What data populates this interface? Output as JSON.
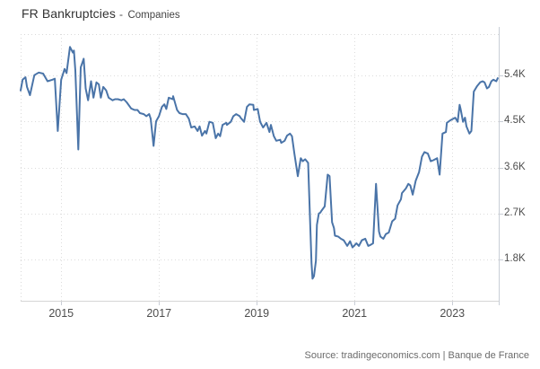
{
  "header": {
    "title": "FR Bankruptcies",
    "separator": "-",
    "subtitle": "Companies"
  },
  "footer": {
    "source": "Source: tradingeconomics.com | Banque de France"
  },
  "colors": {
    "line": "#4a74a8",
    "grid": "#dcdcdc",
    "background": "#ffffff"
  },
  "chart_data": {
    "type": "line",
    "title": "FR Bankruptcies - Companies",
    "xlabel": "",
    "ylabel": "",
    "unit": "K",
    "value_scale": "thousands of companies per month",
    "grid": "dotted",
    "legend": "none",
    "y_axis_position": "right",
    "x_range": [
      2014.17,
      2023.95
    ],
    "y_range": [
      1.0,
      6.2
    ],
    "x_ticks": [
      {
        "value": 2015,
        "label": "2015"
      },
      {
        "value": 2017,
        "label": "2017"
      },
      {
        "value": 2019,
        "label": "2019"
      },
      {
        "value": 2021,
        "label": "2021"
      },
      {
        "value": 2023,
        "label": "2023"
      }
    ],
    "y_ticks": [
      {
        "value": 5.4,
        "label": "5.4K"
      },
      {
        "value": 4.5,
        "label": "4.5K"
      },
      {
        "value": 3.6,
        "label": "3.6K"
      },
      {
        "value": 2.7,
        "label": "2.7K"
      },
      {
        "value": 1.8,
        "label": "1.8K"
      }
    ],
    "series": [
      {
        "name": "FR Bankruptcies - Companies",
        "color": "#4a74a8",
        "x": [
          2014.17,
          2014.21,
          2014.27,
          2014.3,
          2014.36,
          2014.45,
          2014.54,
          2014.63,
          2014.72,
          2014.82,
          2014.87,
          2014.93,
          2015.0,
          2015.07,
          2015.11,
          2015.18,
          2015.24,
          2015.26,
          2015.29,
          2015.35,
          2015.4,
          2015.46,
          2015.5,
          2015.55,
          2015.61,
          2015.66,
          2015.72,
          2015.77,
          2015.81,
          2015.86,
          2015.92,
          2015.97,
          2016.05,
          2016.1,
          2016.16,
          2016.23,
          2016.28,
          2016.34,
          2016.43,
          2016.5,
          2016.56,
          2016.61,
          2016.69,
          2016.74,
          2016.8,
          2016.83,
          2016.89,
          2016.94,
          2017.0,
          2017.06,
          2017.11,
          2017.15,
          2017.2,
          2017.28,
          2017.29,
          2017.37,
          2017.42,
          2017.48,
          2017.55,
          2017.61,
          2017.66,
          2017.73,
          2017.79,
          2017.83,
          2017.88,
          2017.94,
          2017.97,
          2018.03,
          2018.1,
          2018.16,
          2018.21,
          2018.25,
          2018.3,
          2018.38,
          2018.39,
          2018.47,
          2018.52,
          2018.58,
          2018.65,
          2018.67,
          2018.74,
          2018.8,
          2018.85,
          2018.93,
          2018.94,
          2019.02,
          2019.07,
          2019.13,
          2019.2,
          2019.26,
          2019.29,
          2019.35,
          2019.4,
          2019.48,
          2019.5,
          2019.57,
          2019.62,
          2019.68,
          2019.72,
          2019.77,
          2019.84,
          2019.9,
          2019.94,
          2019.99,
          2020.05,
          2020.12,
          2020.14,
          2020.17,
          2020.21,
          2020.23,
          2020.27,
          2020.3,
          2020.32,
          2020.39,
          2020.45,
          2020.49,
          2020.54,
          2020.58,
          2020.6,
          2020.67,
          2020.72,
          2020.78,
          2020.85,
          2020.91,
          2020.96,
          2021.04,
          2021.09,
          2021.15,
          2021.22,
          2021.28,
          2021.33,
          2021.38,
          2021.44,
          2021.5,
          2021.53,
          2021.59,
          2021.64,
          2021.7,
          2021.77,
          2021.83,
          2021.88,
          2021.95,
          2021.97,
          2022.05,
          2022.1,
          2022.14,
          2022.19,
          2022.25,
          2022.32,
          2022.38,
          2022.43,
          2022.5,
          2022.56,
          2022.61,
          2022.69,
          2022.74,
          2022.8,
          2022.87,
          2022.89,
          2022.96,
          2023.02,
          2023.06,
          2023.11,
          2023.15,
          2023.17,
          2023.22,
          2023.26,
          2023.29,
          2023.35,
          2023.39,
          2023.44,
          2023.51,
          2023.57,
          2023.62,
          2023.66,
          2023.71,
          2023.75,
          2023.8,
          2023.84,
          2023.9,
          2023.93
        ],
        "values": [
          5.1,
          5.31,
          5.36,
          5.17,
          5.01,
          5.4,
          5.45,
          5.43,
          5.28,
          5.31,
          5.33,
          4.31,
          5.31,
          5.52,
          5.44,
          5.95,
          5.84,
          5.88,
          5.49,
          3.95,
          5.55,
          5.72,
          5.14,
          4.91,
          5.28,
          4.96,
          5.26,
          5.22,
          4.96,
          5.17,
          5.1,
          4.96,
          4.91,
          4.93,
          4.93,
          4.91,
          4.93,
          4.87,
          4.75,
          4.72,
          4.72,
          4.66,
          4.64,
          4.6,
          4.64,
          4.55,
          4.02,
          4.5,
          4.6,
          4.78,
          4.83,
          4.74,
          4.96,
          4.93,
          4.99,
          4.72,
          4.66,
          4.64,
          4.64,
          4.55,
          4.38,
          4.4,
          4.31,
          4.4,
          4.22,
          4.31,
          4.26,
          4.49,
          4.47,
          4.17,
          4.26,
          4.21,
          4.43,
          4.47,
          4.43,
          4.49,
          4.6,
          4.64,
          4.6,
          4.57,
          4.49,
          4.78,
          4.83,
          4.82,
          4.72,
          4.74,
          4.49,
          4.38,
          4.47,
          4.29,
          4.43,
          4.21,
          4.12,
          4.14,
          4.08,
          4.12,
          4.22,
          4.26,
          4.21,
          3.87,
          3.43,
          3.78,
          3.72,
          3.76,
          3.69,
          1.73,
          1.43,
          1.48,
          1.78,
          2.48,
          2.7,
          2.72,
          2.75,
          2.84,
          3.46,
          3.43,
          2.53,
          2.42,
          2.27,
          2.25,
          2.21,
          2.18,
          2.07,
          2.16,
          2.04,
          2.12,
          2.07,
          2.18,
          2.21,
          2.07,
          2.09,
          2.12,
          3.28,
          2.35,
          2.25,
          2.21,
          2.3,
          2.33,
          2.55,
          2.6,
          2.86,
          2.98,
          3.1,
          3.19,
          3.28,
          3.25,
          3.07,
          3.34,
          3.51,
          3.81,
          3.9,
          3.87,
          3.72,
          3.74,
          3.78,
          3.46,
          4.26,
          4.29,
          4.47,
          4.52,
          4.55,
          4.57,
          4.49,
          4.82,
          4.74,
          4.49,
          4.57,
          4.4,
          4.26,
          4.31,
          5.08,
          5.19,
          5.26,
          5.28,
          5.26,
          5.14,
          5.17,
          5.28,
          5.31,
          5.28,
          5.34
        ]
      }
    ]
  }
}
